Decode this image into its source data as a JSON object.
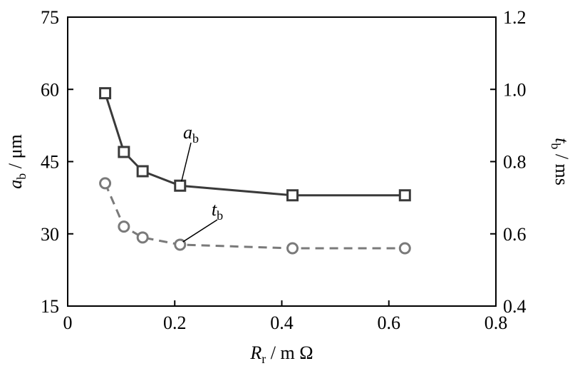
{
  "chart_data": {
    "type": "line",
    "x_axis": {
      "label_main": "R",
      "label_sub": "r",
      "label_unit": " / m Ω",
      "range": [
        0,
        0.8
      ],
      "ticks": [
        0,
        0.2,
        0.4,
        0.6,
        0.8
      ],
      "tick_labels": [
        "0",
        "0.2",
        "0.4",
        "0.6",
        "0.8"
      ]
    },
    "y_left": {
      "label_main": "a",
      "label_sub": "b",
      "label_unit": " / μm",
      "range": [
        15,
        75
      ],
      "ticks": [
        15,
        30,
        45,
        60,
        75
      ],
      "tick_labels": [
        "15",
        "30",
        "45",
        "60",
        "75"
      ]
    },
    "y_right": {
      "label_main": "t",
      "label_sub": "b",
      "label_unit": " / ms",
      "range": [
        0.4,
        1.2
      ],
      "ticks": [
        0.4,
        0.6,
        0.8,
        1.0,
        1.2
      ],
      "tick_labels": [
        "0.4",
        "0.6",
        "0.8",
        "1.0",
        "1.2"
      ]
    },
    "series": [
      {
        "name_main": "a",
        "name_sub": "b",
        "axis": "left",
        "marker": "square",
        "line_style": "solid",
        "color": "#3a3a3a",
        "x": [
          0.07,
          0.105,
          0.14,
          0.21,
          0.42,
          0.63
        ],
        "y": [
          59.2,
          47.0,
          43.0,
          40.0,
          38.0,
          38.0
        ]
      },
      {
        "name_main": "t",
        "name_sub": "b",
        "axis": "right",
        "marker": "circle",
        "line_style": "dashed",
        "color": "#7a7a7a",
        "x": [
          0.07,
          0.105,
          0.14,
          0.21,
          0.42,
          0.63
        ],
        "y": [
          0.74,
          0.62,
          0.59,
          0.57,
          0.56,
          0.56
        ]
      }
    ],
    "grid": false
  }
}
